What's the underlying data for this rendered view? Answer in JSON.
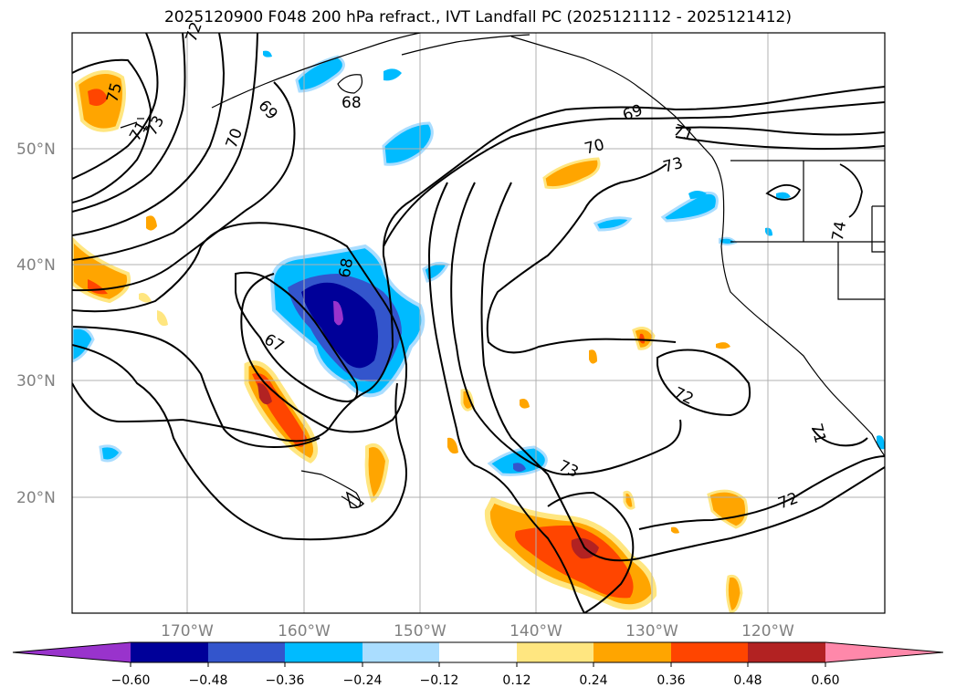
{
  "title": "2025120900 F048 200 hPa refract., IVT Landfall PC (2025121112 - 2025121412)",
  "lat_labels": [
    "50°N",
    "40°N",
    "30°N",
    "20°N"
  ],
  "lon_labels": [
    "170°W",
    "160°W",
    "150°W",
    "140°W",
    "130°W",
    "120°W"
  ],
  "contour_labels": [
    "75",
    "73",
    "71",
    "72",
    "70",
    "69",
    "68",
    "67",
    "68",
    "70",
    "73",
    "69",
    "71",
    "74",
    "72",
    "73",
    "72",
    "71"
  ],
  "colorbar": {
    "ticks": [
      "−0.60",
      "−0.48",
      "−0.36",
      "−0.24",
      "−0.12",
      "0.12",
      "0.24",
      "0.36",
      "0.48",
      "0.60"
    ],
    "colors": [
      "#9933cc",
      "#000099",
      "#3355cc",
      "#00bbff",
      "#aaddff",
      "#ffffff",
      "#ffe680",
      "#ffa500",
      "#ff4500",
      "#b22222",
      "#ff88aa"
    ]
  }
}
